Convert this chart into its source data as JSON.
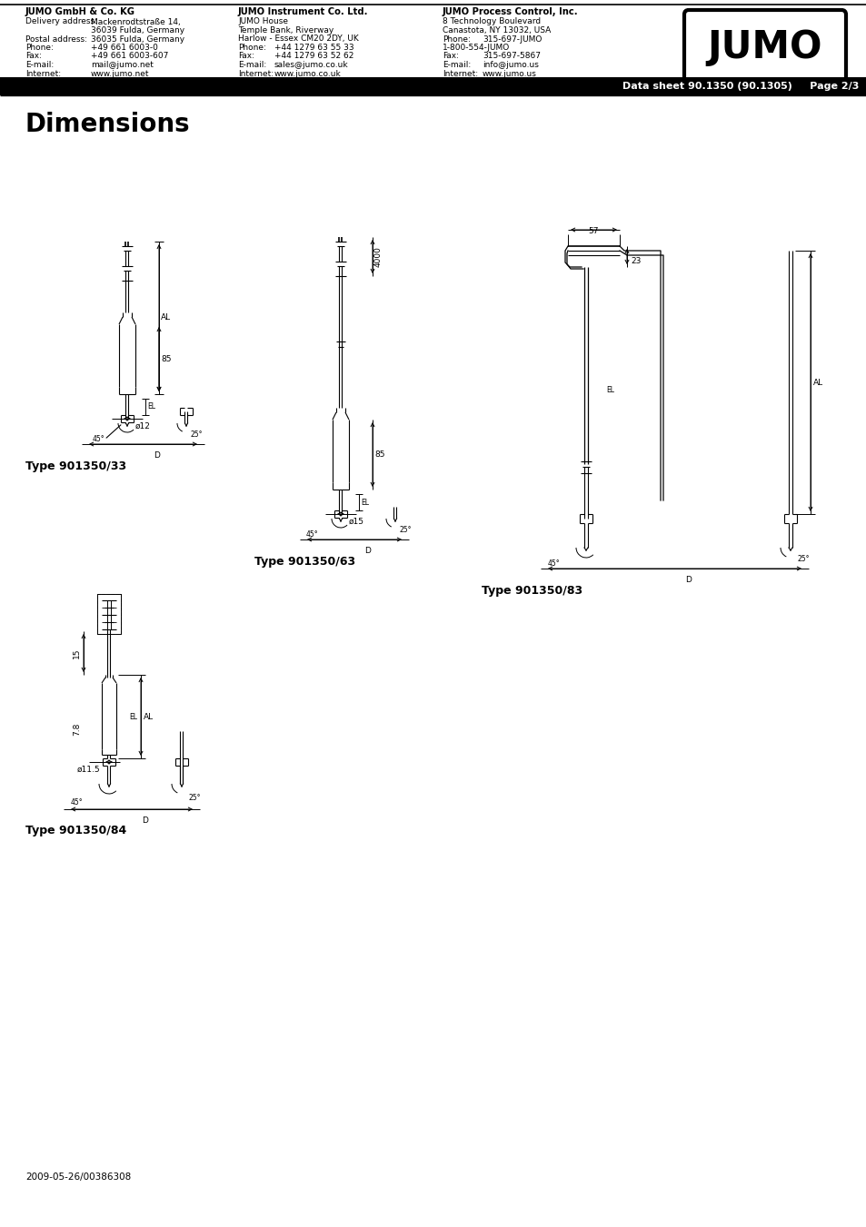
{
  "title": "Dimensions",
  "header_bar_text": "Data sheet 90.1350 (90.1305)     Page 2/3",
  "company1_name": "JUMO GmbH & Co. KG",
  "company1_lines": [
    [
      "Delivery address:",
      "Mackenrodtstraße 14,"
    ],
    [
      "",
      "36039 Fulda, Germany"
    ],
    [
      "Postal address:",
      "36035 Fulda, Germany"
    ],
    [
      "Phone:",
      "+49 661 6003-0"
    ],
    [
      "Fax:",
      "+49 661 6003-607"
    ],
    [
      "E-mail:",
      "mail@jumo.net"
    ],
    [
      "Internet:",
      "www.jumo.net"
    ]
  ],
  "company2_name": "JUMO Instrument Co. Ltd.",
  "company2_lines": [
    [
      "",
      "JUMO House"
    ],
    [
      "",
      "Temple Bank, Riverway"
    ],
    [
      "",
      "Harlow - Essex CM20 2DY, UK"
    ],
    [
      "Phone:",
      "+44 1279 63 55 33"
    ],
    [
      "Fax:",
      "+44 1279 63 52 62"
    ],
    [
      "E-mail:",
      "sales@jumo.co.uk"
    ],
    [
      "Internet:",
      "www.jumo.co.uk"
    ]
  ],
  "company3_name": "JUMO Process Control, Inc.",
  "company3_lines": [
    [
      "",
      "8 Technology Boulevard"
    ],
    [
      "",
      "Canastota, NY 13032, USA"
    ],
    [
      "Phone:",
      "315-697-JUMO"
    ],
    [
      "",
      "1-800-554-JUMO"
    ],
    [
      "Fax:",
      "315-697-5867"
    ],
    [
      "E-mail:",
      "info@jumo.us"
    ],
    [
      "Internet:",
      "www.jumo.us"
    ]
  ],
  "type_labels": [
    "Type 901350/33",
    "Type 901350/63",
    "Type 901350/83",
    "Type 901350/84"
  ],
  "footer_text": "2009-05-26/00386308",
  "background_color": "#ffffff"
}
